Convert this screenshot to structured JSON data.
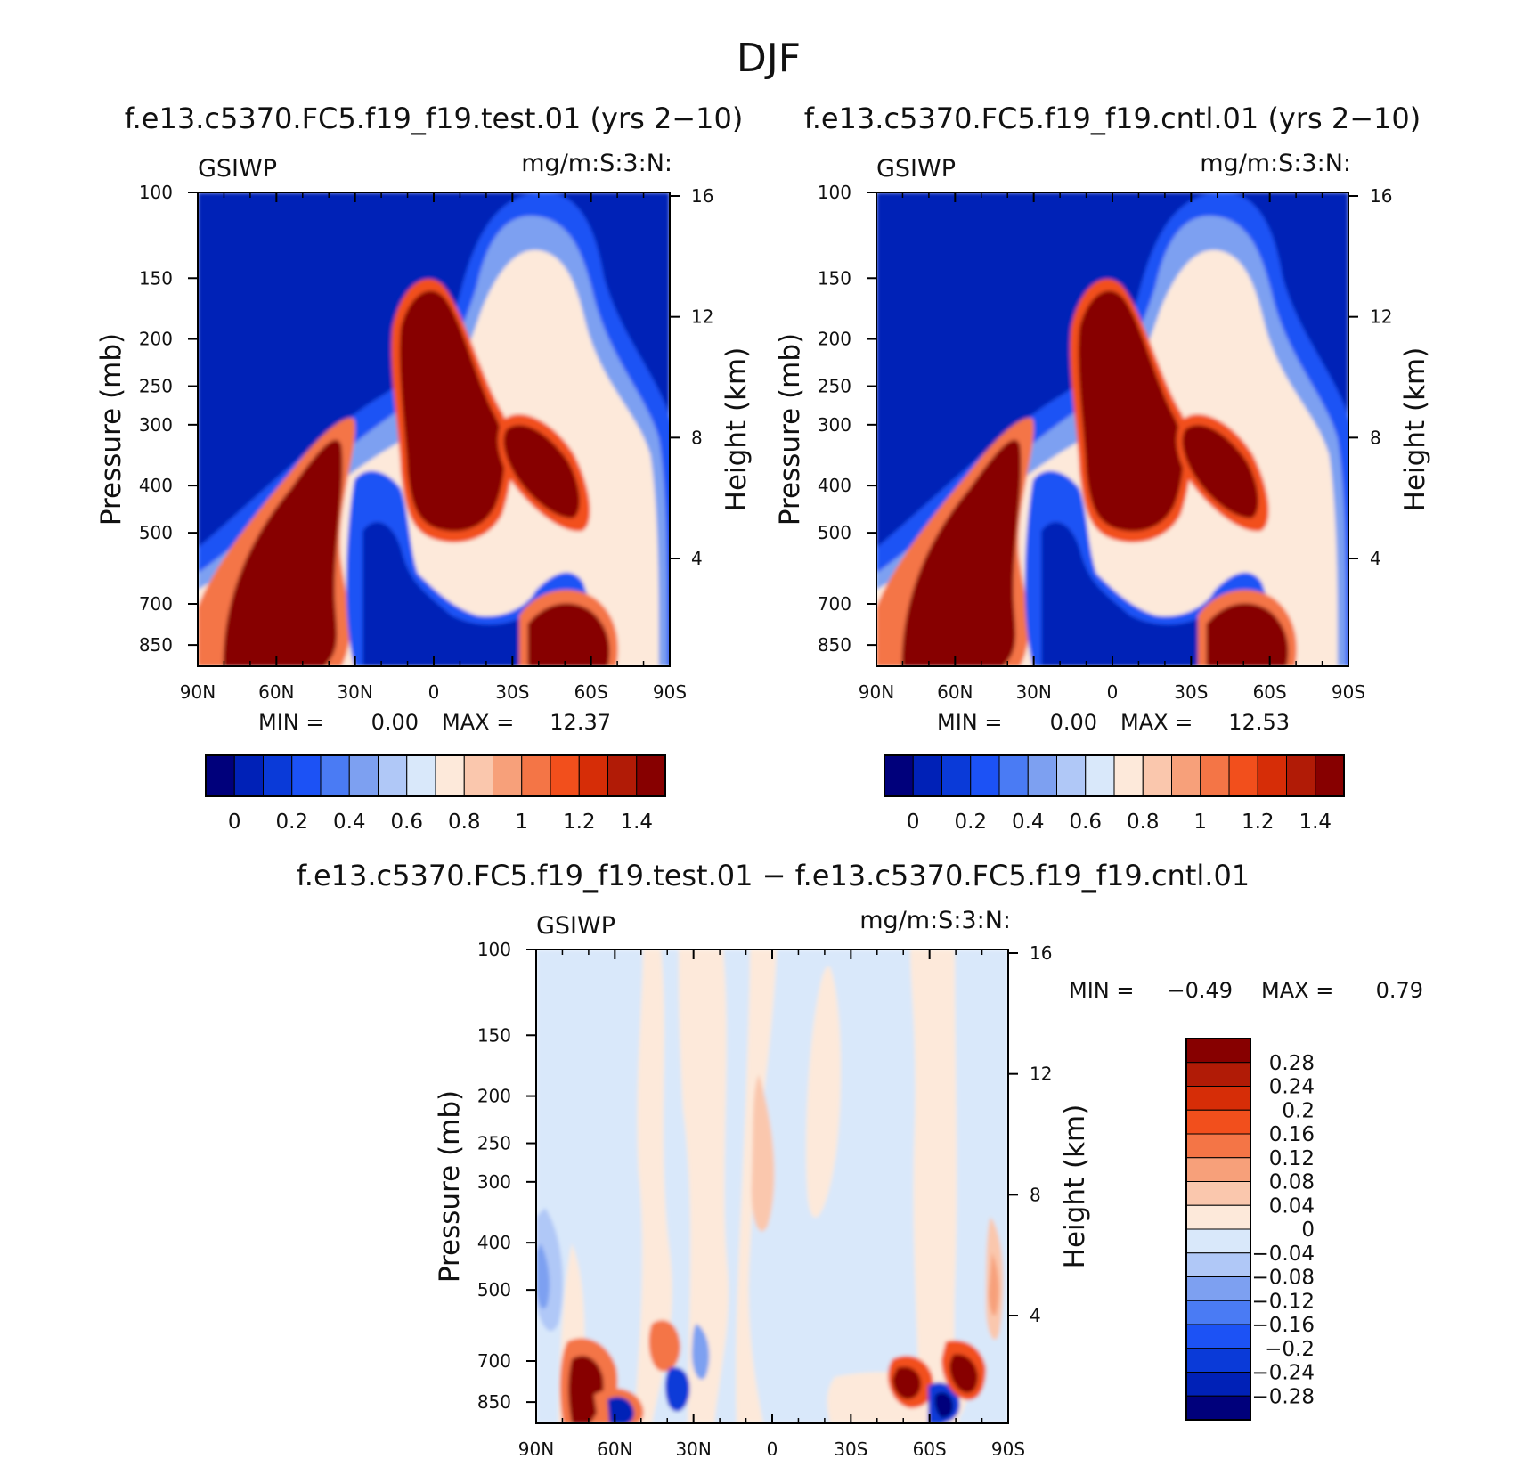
{
  "figure": {
    "title": "DJF",
    "colors": {
      "seq": [
        "#00007b",
        "#0021b7",
        "#0a3ad8",
        "#1c52f5",
        "#4a7bf4",
        "#7da0f1",
        "#b0c8f7",
        "#d9e8fa",
        "#fde9da",
        "#fac7ad",
        "#f7a07a",
        "#f47546",
        "#f24f1c",
        "#d62d07",
        "#b11b06",
        "#870000"
      ],
      "diff": [
        "#00007b",
        "#0021b7",
        "#0a3ad8",
        "#1c52f5",
        "#4a7bf4",
        "#7da0f1",
        "#b0c8f7",
        "#d9e8fa",
        "#fde9da",
        "#fac7ad",
        "#f7a07a",
        "#f47546",
        "#f24f1c",
        "#d62d07",
        "#b11b06",
        "#870000"
      ]
    }
  },
  "chart_data": [
    {
      "id": "test",
      "type": "heatmap",
      "title": "f.e13.c5370.FC5.f19_f19.test.01 (yrs 2−10)",
      "variable": "GSIWP",
      "units": "mg/m:S:3:N:",
      "xlabel": "",
      "ylabel": "Pressure (mb)",
      "y2label": "Height (km)",
      "x_ticks": [
        "90N",
        "60N",
        "30N",
        "0",
        "30S",
        "60S",
        "90S"
      ],
      "y_ticks": [
        "100",
        "150",
        "200",
        "250",
        "300",
        "400",
        "500",
        "700",
        "850"
      ],
      "y2_ticks": [
        "16",
        "12",
        "8",
        "4"
      ],
      "min_label": "MIN =",
      "min_value": "0.00",
      "max_label": "MAX =",
      "max_value": "12.37",
      "colorbar_labels": [
        "0",
        "0.2",
        "0.4",
        "0.6",
        "0.8",
        "1",
        "1.2",
        "1.4"
      ]
    },
    {
      "id": "cntl",
      "type": "heatmap",
      "title": "f.e13.c5370.FC5.f19_f19.cntl.01 (yrs 2−10)",
      "variable": "GSIWP",
      "units": "mg/m:S:3:N:",
      "xlabel": "",
      "ylabel": "Pressure (mb)",
      "y2label": "Height (km)",
      "x_ticks": [
        "90N",
        "60N",
        "30N",
        "0",
        "30S",
        "60S",
        "90S"
      ],
      "y_ticks": [
        "100",
        "150",
        "200",
        "250",
        "300",
        "400",
        "500",
        "700",
        "850"
      ],
      "y2_ticks": [
        "16",
        "12",
        "8",
        "4"
      ],
      "min_label": "MIN =",
      "min_value": "0.00",
      "max_label": "MAX =",
      "max_value": "12.53",
      "colorbar_labels": [
        "0",
        "0.2",
        "0.4",
        "0.6",
        "0.8",
        "1",
        "1.2",
        "1.4"
      ]
    },
    {
      "id": "diff",
      "type": "heatmap",
      "title": "f.e13.c5370.FC5.f19_f19.test.01 − f.e13.c5370.FC5.f19_f19.cntl.01",
      "variable": "GSIWP",
      "units": "mg/m:S:3:N:",
      "xlabel": "",
      "ylabel": "Pressure (mb)",
      "y2label": "Height (km)",
      "x_ticks": [
        "90N",
        "60N",
        "30N",
        "0",
        "30S",
        "60S",
        "90S"
      ],
      "y_ticks": [
        "100",
        "150",
        "200",
        "250",
        "300",
        "400",
        "500",
        "700",
        "850"
      ],
      "y2_ticks": [
        "16",
        "12",
        "8",
        "4"
      ],
      "min_label": "MIN =",
      "min_value": "−0.49",
      "max_label": "MAX =",
      "max_value": "0.79",
      "colorbar_labels": [
        "0.28",
        "0.24",
        "0.2",
        "0.16",
        "0.12",
        "0.08",
        "0.04",
        "0",
        "−0.04",
        "−0.08",
        "−0.12",
        "−0.16",
        "−0.2",
        "−0.24",
        "−0.28"
      ]
    }
  ]
}
